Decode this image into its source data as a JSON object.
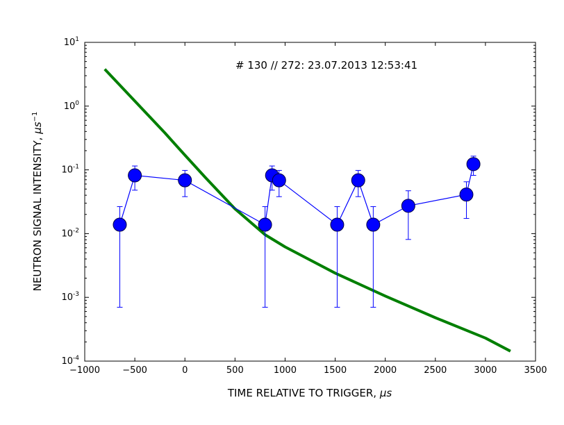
{
  "chart_data": {
    "type": "scatter",
    "title": "",
    "annotation": "# 130 // 272: 23.07.2013 12:53:41",
    "xlabel": "TIME RELATIVE TO TRIGGER, ",
    "xlabel_unit": "μs",
    "ylabel": "NEUTRON SIGNAL INTENSITY, ",
    "ylabel_unit": "μs",
    "ylabel_unit_exp": "−1",
    "xlim": [
      -1000,
      3500
    ],
    "ylim": [
      0.0001,
      10
    ],
    "yscale": "log",
    "grid": false,
    "xticks": [
      -1000,
      -500,
      0,
      500,
      1000,
      1500,
      2000,
      2500,
      3000,
      3500
    ],
    "xtick_labels": [
      "−1000",
      "−500",
      "0",
      "500",
      "1000",
      "1500",
      "2000",
      "2500",
      "3000",
      "3500"
    ],
    "yticks": [
      {
        "value": 0.0001,
        "base": "10",
        "exp": "-4"
      },
      {
        "value": 0.001,
        "base": "10",
        "exp": "-3"
      },
      {
        "value": 0.01,
        "base": "10",
        "exp": "-2"
      },
      {
        "value": 0.1,
        "base": "10",
        "exp": "-1"
      },
      {
        "value": 1,
        "base": "10",
        "exp": "0"
      },
      {
        "value": 10,
        "base": "10",
        "exp": "1"
      }
    ],
    "series": [
      {
        "style": "markers-with-errorbars",
        "color": "#0000ff",
        "points": [
          {
            "x": -650,
            "y": 0.0138,
            "ylo": 0.0007,
            "yhi": 0.0265
          },
          {
            "x": -500,
            "y": 0.082,
            "ylo": 0.048,
            "yhi": 0.115
          },
          {
            "x": 0,
            "y": 0.0685,
            "ylo": 0.038,
            "yhi": 0.098
          },
          {
            "x": 800,
            "y": 0.0138,
            "ylo": 0.0007,
            "yhi": 0.0265
          },
          {
            "x": 870,
            "y": 0.082,
            "ylo": 0.048,
            "yhi": 0.115
          },
          {
            "x": 940,
            "y": 0.0685,
            "ylo": 0.038,
            "yhi": 0.098
          },
          {
            "x": 1520,
            "y": 0.0138,
            "ylo": 0.0007,
            "yhi": 0.0265
          },
          {
            "x": 1730,
            "y": 0.0685,
            "ylo": 0.038,
            "yhi": 0.098
          },
          {
            "x": 1880,
            "y": 0.0138,
            "ylo": 0.0007,
            "yhi": 0.0265
          },
          {
            "x": 2230,
            "y": 0.0273,
            "ylo": 0.0081,
            "yhi": 0.047
          },
          {
            "x": 2810,
            "y": 0.041,
            "ylo": 0.0173,
            "yhi": 0.065
          },
          {
            "x": 2880,
            "y": 0.123,
            "ylo": 0.082,
            "yhi": 0.164
          }
        ]
      },
      {
        "style": "line",
        "color": "#007f00",
        "x": [
          -800,
          -500,
          -200,
          0,
          200,
          500,
          800,
          1000,
          1500,
          2000,
          2500,
          3000,
          3250
        ],
        "y": [
          3.8,
          1.2,
          0.38,
          0.17,
          0.077,
          0.0245,
          0.0096,
          0.0062,
          0.0024,
          0.00105,
          0.00048,
          0.00023,
          0.000143
        ]
      }
    ]
  }
}
